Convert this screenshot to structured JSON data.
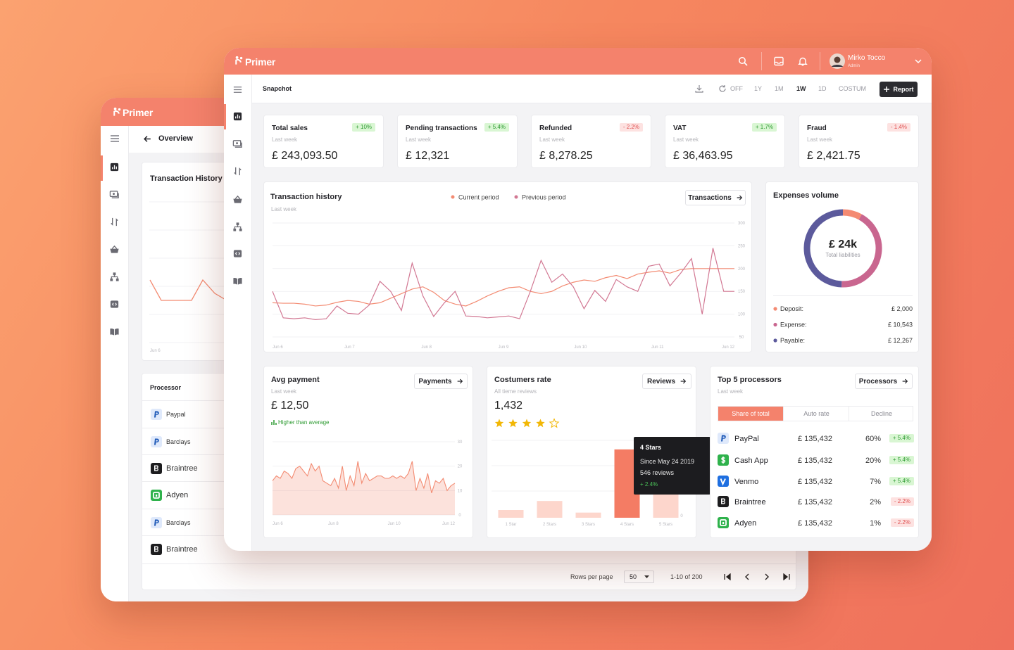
{
  "back_window": {
    "brand": "Primer",
    "breadcrumb": "Overview",
    "card_title": "Transaction History",
    "x_label": "Jun 6",
    "processor_table": {
      "header": "Processor",
      "rows": [
        "Paypal",
        "Barclays",
        "Braintree",
        "Adyen",
        "Barclays",
        "Braintree"
      ]
    },
    "pagination": {
      "rows_per_page_label": "Rows per page",
      "rows_per_page": 50,
      "range": "1-10 of 200"
    }
  },
  "front_window": {
    "header": {
      "brand": "Primer",
      "user_name": "Mirko Tocco",
      "user_role": "Admin"
    },
    "toolbar": {
      "title": "Snapchot",
      "periods": [
        "OFF",
        "1Y",
        "1M",
        "1W",
        "1D",
        "COSTUM"
      ],
      "active_period": "1W",
      "action": "Report"
    },
    "kpis": [
      {
        "title": "Total sales",
        "period": "Last week",
        "value": "£ 243,093.50",
        "change": "+ 10%"
      },
      {
        "title": "Pending transactions",
        "period": "Last week",
        "value": "£ 12,321",
        "change": "+ 5.4%"
      },
      {
        "title": "Refunded",
        "period": "Last week",
        "value": "£ 8,278.25",
        "change": "- 2.2%"
      },
      {
        "title": "VAT",
        "period": "Last week",
        "value": "£ 36,463.95",
        "change": "+ 1.7%"
      },
      {
        "title": "Fraud",
        "period": "Last week",
        "value": "£ 2,421.75",
        "change": "- 1.4%"
      }
    ],
    "transaction_history": {
      "type": "line",
      "title": "Transaction history",
      "subtitle": "Last week",
      "action": "Transactions",
      "x_labels": [
        "Jun 6",
        "Jun 7",
        "Jun 8",
        "Jun 9",
        "Jun 10",
        "Jun 11",
        "Jun 12"
      ],
      "series": [
        {
          "name": "Current period",
          "color": "#f38b72",
          "values": [
            125,
            124,
            124,
            122,
            118,
            120,
            126,
            130,
            128,
            122,
            125,
            135,
            145,
            155,
            160,
            148,
            130,
            122,
            118,
            128,
            140,
            150,
            158,
            160,
            150,
            145,
            150,
            162,
            170,
            175,
            172,
            180,
            185,
            178,
            188,
            192,
            195,
            190,
            198,
            200,
            200,
            200,
            200,
            200
          ]
        },
        {
          "name": "Previous period",
          "color": "#d27893",
          "values": [
            150,
            92,
            90,
            92,
            88,
            90,
            118,
            102,
            100,
            120,
            172,
            150,
            108,
            212,
            140,
            95,
            125,
            150,
            96,
            95,
            92,
            94,
            96,
            90,
            150,
            218,
            170,
            188,
            160,
            112,
            152,
            128,
            176,
            160,
            150,
            205,
            210,
            162,
            190,
            222,
            100,
            245,
            150,
            150
          ]
        }
      ],
      "ylim": [
        40,
        310
      ],
      "yticks": [
        50,
        100,
        150,
        200,
        250,
        300
      ],
      "grid": true
    },
    "expenses_volume": {
      "type": "donut",
      "title": "Expenses volume",
      "center_value": "£ 24k",
      "center_label": "Total liabilities",
      "categories": [
        "Deposit:",
        "Expense:",
        "Payable:"
      ],
      "values": [
        2000,
        10543,
        12267
      ],
      "value_labels": [
        "£ 2,000",
        "£ 10,543",
        "£ 12,267"
      ],
      "colors": [
        "#f48a72",
        "#c9668f",
        "#5c5a9c"
      ]
    },
    "avg_payment": {
      "type": "area",
      "title": "Avg payment",
      "subtitle": "Last week",
      "value": "£ 12,50",
      "note": "Higher than average",
      "action": "Payments",
      "x_labels": [
        "Jun 6",
        "Jun 8",
        "Jun 10",
        "Jun 12"
      ],
      "values": [
        14,
        16,
        15,
        18,
        17,
        15,
        19,
        20,
        18,
        16,
        21,
        18,
        20,
        14,
        13,
        12,
        15,
        11,
        20,
        10,
        16,
        12,
        22,
        13,
        17,
        14,
        15,
        16,
        16,
        15,
        15,
        16,
        15,
        16,
        15,
        17,
        22,
        10,
        15,
        11,
        17,
        9,
        14,
        13,
        15,
        10,
        12,
        13
      ],
      "color": "#f38b72",
      "ylim": [
        0,
        30
      ],
      "yticks": [
        0,
        10,
        20,
        30
      ]
    },
    "customers_rate": {
      "type": "bar",
      "title": "Costumers rate",
      "subtitle": "All tieme reviews",
      "value": "1,432",
      "rating": 4,
      "rating_max": 5,
      "action": "Reviews",
      "categories": [
        "1 Star",
        "2 Stars",
        "3 Stars",
        "4 Stars",
        "5 Stars"
      ],
      "values": [
        3,
        6.5,
        2,
        26.5,
        9.5
      ],
      "color": "#fdd6cc",
      "highlight_color": "#f47c64",
      "ylim": [
        0,
        30
      ],
      "yticks": [
        0
      ],
      "tooltip": {
        "title": "4 Stars",
        "lines": [
          "Since May 24 2019",
          "546 reviews"
        ],
        "change": "+ 2.4%"
      }
    },
    "top_processors": {
      "title": "Top 5 processors",
      "subtitle": "Last week",
      "action": "Processors",
      "tabs": [
        "Share of total",
        "Auto rate",
        "Decline"
      ],
      "active_tab": "Share of total",
      "rows": [
        [
          "PayPal",
          "£ 135,432",
          "60%",
          "+ 5.4%"
        ],
        [
          "Cash App",
          "£ 135,432",
          "20%",
          "+ 5.4%"
        ],
        [
          "Venmo",
          "£ 135,432",
          "7%",
          "+ 5.4%"
        ],
        [
          "Braintree",
          "£ 135,432",
          "2%",
          "- 2.2%"
        ],
        [
          "Adyen",
          "£ 135,432",
          "1%",
          "- 2.2%"
        ]
      ]
    }
  }
}
